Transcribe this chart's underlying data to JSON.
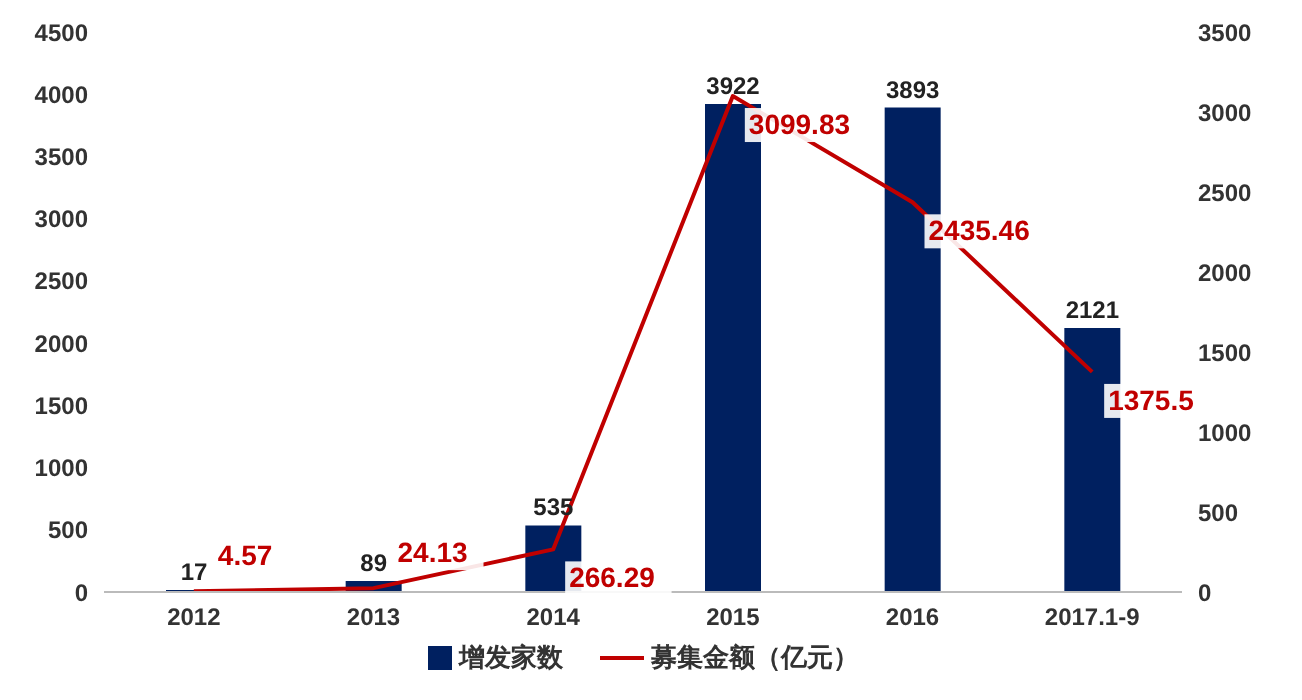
{
  "chart_data": {
    "type": "bar",
    "categories": [
      "2012",
      "2013",
      "2014",
      "2015",
      "2016",
      "2017.1-9"
    ],
    "series": [
      {
        "name": "增发家数",
        "color": "#002060",
        "values": [
          17,
          89,
          535,
          3922,
          3893,
          2121
        ]
      },
      {
        "name": "募集金额（亿元）",
        "type": "line",
        "axis": "y2",
        "color": "#c00000",
        "values": [
          4.57,
          24.13,
          266.29,
          3099.83,
          2435.46,
          1375.5
        ]
      }
    ],
    "ylim": [
      0,
      4500
    ],
    "yticks": [
      0,
      500,
      1000,
      1500,
      2000,
      2500,
      3000,
      3500,
      4000,
      4500
    ],
    "y2lim": [
      0,
      3500
    ],
    "y2ticks": [
      0,
      500,
      1000,
      1500,
      2000,
      2500,
      3000,
      3500
    ],
    "data_labels": true,
    "grid": false,
    "legend": "bottom",
    "marker": "none",
    "line_style": "solid"
  }
}
